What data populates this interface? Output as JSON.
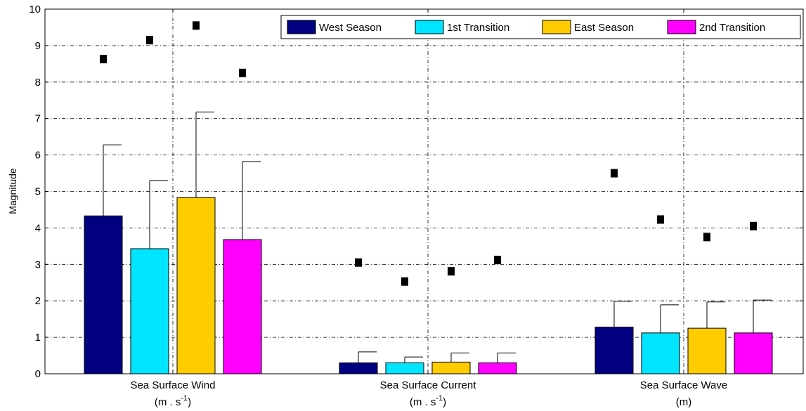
{
  "chart_data": {
    "type": "bar",
    "categories": [
      "Sea Surface Wind",
      "Sea Surface  Current",
      "Sea Surface Wave"
    ],
    "units": [
      {
        "base": "(m . s",
        "exp": "-1",
        "close": ")"
      },
      {
        "base": "(m . s",
        "exp": "-1",
        "close": ")"
      },
      {
        "base": "(m)",
        "exp": "",
        "close": ""
      }
    ],
    "ylabel": "Magnitude",
    "ylim": [
      0,
      10
    ],
    "yticks": [
      "0",
      "1",
      "2",
      "3",
      "4",
      "5",
      "6",
      "7",
      "8",
      "9",
      "10"
    ],
    "grid": true,
    "legend_position": "top-right",
    "series": [
      {
        "name": "West Season",
        "color": "#000080",
        "values": [
          4.33,
          0.3,
          1.28
        ],
        "error_upper": [
          6.28,
          0.6,
          1.99
        ],
        "max": [
          8.63,
          3.05,
          5.5
        ]
      },
      {
        "name": "1st Transition",
        "color": "#00e5ff",
        "values": [
          3.43,
          0.3,
          1.12
        ],
        "error_upper": [
          5.3,
          0.46,
          1.89
        ],
        "max": [
          9.15,
          2.53,
          4.23
        ]
      },
      {
        "name": "East Season",
        "color": "#ffcc00",
        "values": [
          4.83,
          0.32,
          1.25
        ],
        "error_upper": [
          7.18,
          0.57,
          1.97
        ],
        "max": [
          9.55,
          2.81,
          3.75
        ]
      },
      {
        "name": "2nd Transition",
        "color": "#ff00ff",
        "values": [
          3.68,
          0.3,
          1.12
        ],
        "error_upper": [
          5.82,
          0.57,
          2.02
        ],
        "max": [
          8.25,
          3.12,
          4.05
        ]
      }
    ]
  }
}
